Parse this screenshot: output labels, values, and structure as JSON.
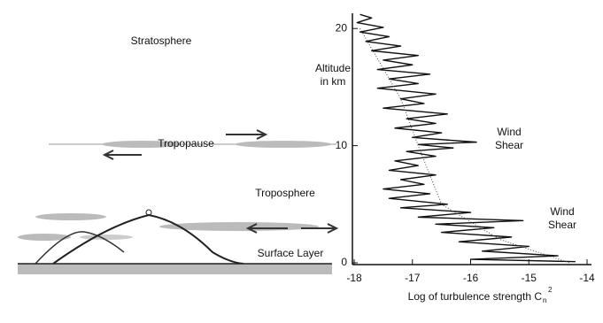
{
  "diagram": {
    "labels": [
      "Stratosphere",
      "Tropopause",
      "Troposphere",
      "Surface Layer"
    ]
  },
  "chart_data": {
    "type": "line",
    "ylabel_lines": [
      "Altitude",
      "in km"
    ],
    "xlabel": "Log of turbulence strength C",
    "xlabel_sub": "n",
    "xlabel_sup": "2",
    "annotations": [
      [
        "Wind",
        "Shear"
      ],
      [
        "Wind",
        "Shear"
      ]
    ],
    "xlim": [
      -18,
      -14
    ],
    "xticks": [
      -18,
      -17,
      -16,
      -15,
      -14
    ],
    "ylim": [
      0,
      21.3
    ],
    "yticks": [
      0,
      10,
      20
    ],
    "series": [
      {
        "color": "#111",
        "style": "solid",
        "x": [
          -14.2,
          -16.0,
          -14.5,
          -15.8,
          -15.0,
          -16.2,
          -15.3,
          -16.5,
          -15.6,
          -16.6,
          -15.1,
          -16.9,
          -16.0,
          -17.2,
          -16.4,
          -17.4,
          -16.7,
          -17.5,
          -16.8,
          -17.2,
          -16.6,
          -17.4,
          -16.9,
          -17.3,
          -16.6,
          -17.1,
          -16.3,
          -16.9,
          -15.9,
          -17.0,
          -16.5,
          -17.3,
          -16.6,
          -17.1,
          -16.4,
          -17.5,
          -16.8,
          -17.2,
          -16.6,
          -17.6,
          -16.9,
          -17.4,
          -16.7,
          -17.6,
          -17.0,
          -17.5,
          -16.9,
          -17.7,
          -17.2,
          -17.8,
          -17.4,
          -17.9,
          -17.5,
          -17.95,
          -17.7,
          -17.9
        ],
        "values": [
          0.1,
          0.3,
          0.6,
          1.0,
          1.4,
          1.8,
          2.2,
          2.6,
          3.0,
          3.3,
          3.6,
          3.9,
          4.3,
          4.7,
          5.0,
          5.5,
          5.9,
          6.3,
          6.7,
          7.1,
          7.5,
          7.9,
          8.3,
          8.7,
          9.1,
          9.5,
          9.8,
          10.1,
          10.3,
          10.7,
          11.1,
          11.5,
          11.9,
          12.3,
          12.7,
          13.2,
          13.6,
          14.0,
          14.4,
          14.9,
          15.3,
          15.7,
          16.1,
          16.5,
          16.9,
          17.3,
          17.7,
          18.1,
          18.5,
          18.9,
          19.3,
          19.7,
          20.1,
          20.5,
          20.9,
          21.2
        ]
      },
      {
        "color": "#444",
        "style": "dotted",
        "x": [
          -17.9,
          -17.2,
          -16.9,
          -16.5,
          -15.5,
          -14.3
        ],
        "values": [
          20,
          14,
          10,
          5,
          2,
          0
        ]
      }
    ]
  }
}
